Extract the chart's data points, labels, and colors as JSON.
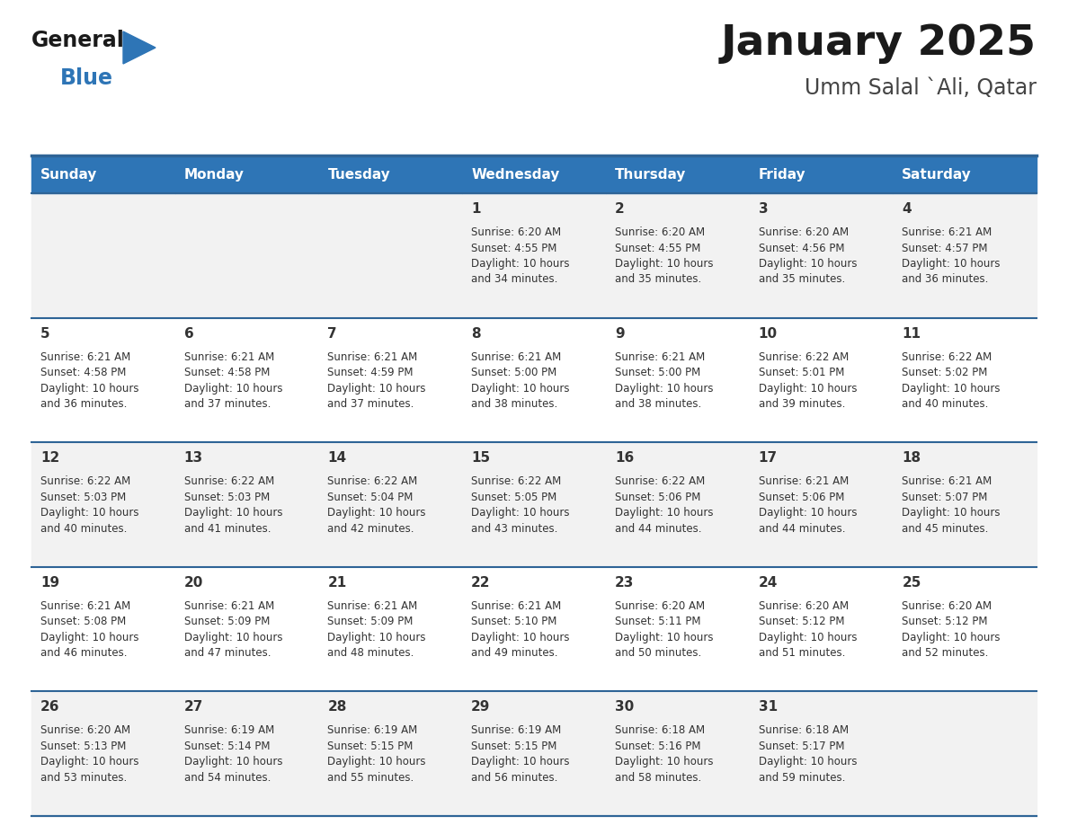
{
  "title": "January 2025",
  "subtitle": "Umm Salal `Ali, Qatar",
  "days_of_week": [
    "Sunday",
    "Monday",
    "Tuesday",
    "Wednesday",
    "Thursday",
    "Friday",
    "Saturday"
  ],
  "header_bg": "#2E75B6",
  "header_text_color": "#FFFFFF",
  "cell_bg_odd": "#F2F2F2",
  "cell_bg_even": "#FFFFFF",
  "row_line_color": "#2E6496",
  "text_color": "#333333",
  "logo_black": "#1a1a1a",
  "logo_blue": "#2E75B6",
  "calendar_data": [
    [
      {
        "day": null,
        "sunrise": null,
        "sunset": null,
        "daylight": null
      },
      {
        "day": null,
        "sunrise": null,
        "sunset": null,
        "daylight": null
      },
      {
        "day": null,
        "sunrise": null,
        "sunset": null,
        "daylight": null
      },
      {
        "day": 1,
        "sunrise": "6:20 AM",
        "sunset": "4:55 PM",
        "daylight": "10 hours\nand 34 minutes."
      },
      {
        "day": 2,
        "sunrise": "6:20 AM",
        "sunset": "4:55 PM",
        "daylight": "10 hours\nand 35 minutes."
      },
      {
        "day": 3,
        "sunrise": "6:20 AM",
        "sunset": "4:56 PM",
        "daylight": "10 hours\nand 35 minutes."
      },
      {
        "day": 4,
        "sunrise": "6:21 AM",
        "sunset": "4:57 PM",
        "daylight": "10 hours\nand 36 minutes."
      }
    ],
    [
      {
        "day": 5,
        "sunrise": "6:21 AM",
        "sunset": "4:58 PM",
        "daylight": "10 hours\nand 36 minutes."
      },
      {
        "day": 6,
        "sunrise": "6:21 AM",
        "sunset": "4:58 PM",
        "daylight": "10 hours\nand 37 minutes."
      },
      {
        "day": 7,
        "sunrise": "6:21 AM",
        "sunset": "4:59 PM",
        "daylight": "10 hours\nand 37 minutes."
      },
      {
        "day": 8,
        "sunrise": "6:21 AM",
        "sunset": "5:00 PM",
        "daylight": "10 hours\nand 38 minutes."
      },
      {
        "day": 9,
        "sunrise": "6:21 AM",
        "sunset": "5:00 PM",
        "daylight": "10 hours\nand 38 minutes."
      },
      {
        "day": 10,
        "sunrise": "6:22 AM",
        "sunset": "5:01 PM",
        "daylight": "10 hours\nand 39 minutes."
      },
      {
        "day": 11,
        "sunrise": "6:22 AM",
        "sunset": "5:02 PM",
        "daylight": "10 hours\nand 40 minutes."
      }
    ],
    [
      {
        "day": 12,
        "sunrise": "6:22 AM",
        "sunset": "5:03 PM",
        "daylight": "10 hours\nand 40 minutes."
      },
      {
        "day": 13,
        "sunrise": "6:22 AM",
        "sunset": "5:03 PM",
        "daylight": "10 hours\nand 41 minutes."
      },
      {
        "day": 14,
        "sunrise": "6:22 AM",
        "sunset": "5:04 PM",
        "daylight": "10 hours\nand 42 minutes."
      },
      {
        "day": 15,
        "sunrise": "6:22 AM",
        "sunset": "5:05 PM",
        "daylight": "10 hours\nand 43 minutes."
      },
      {
        "day": 16,
        "sunrise": "6:22 AM",
        "sunset": "5:06 PM",
        "daylight": "10 hours\nand 44 minutes."
      },
      {
        "day": 17,
        "sunrise": "6:21 AM",
        "sunset": "5:06 PM",
        "daylight": "10 hours\nand 44 minutes."
      },
      {
        "day": 18,
        "sunrise": "6:21 AM",
        "sunset": "5:07 PM",
        "daylight": "10 hours\nand 45 minutes."
      }
    ],
    [
      {
        "day": 19,
        "sunrise": "6:21 AM",
        "sunset": "5:08 PM",
        "daylight": "10 hours\nand 46 minutes."
      },
      {
        "day": 20,
        "sunrise": "6:21 AM",
        "sunset": "5:09 PM",
        "daylight": "10 hours\nand 47 minutes."
      },
      {
        "day": 21,
        "sunrise": "6:21 AM",
        "sunset": "5:09 PM",
        "daylight": "10 hours\nand 48 minutes."
      },
      {
        "day": 22,
        "sunrise": "6:21 AM",
        "sunset": "5:10 PM",
        "daylight": "10 hours\nand 49 minutes."
      },
      {
        "day": 23,
        "sunrise": "6:20 AM",
        "sunset": "5:11 PM",
        "daylight": "10 hours\nand 50 minutes."
      },
      {
        "day": 24,
        "sunrise": "6:20 AM",
        "sunset": "5:12 PM",
        "daylight": "10 hours\nand 51 minutes."
      },
      {
        "day": 25,
        "sunrise": "6:20 AM",
        "sunset": "5:12 PM",
        "daylight": "10 hours\nand 52 minutes."
      }
    ],
    [
      {
        "day": 26,
        "sunrise": "6:20 AM",
        "sunset": "5:13 PM",
        "daylight": "10 hours\nand 53 minutes."
      },
      {
        "day": 27,
        "sunrise": "6:19 AM",
        "sunset": "5:14 PM",
        "daylight": "10 hours\nand 54 minutes."
      },
      {
        "day": 28,
        "sunrise": "6:19 AM",
        "sunset": "5:15 PM",
        "daylight": "10 hours\nand 55 minutes."
      },
      {
        "day": 29,
        "sunrise": "6:19 AM",
        "sunset": "5:15 PM",
        "daylight": "10 hours\nand 56 minutes."
      },
      {
        "day": 30,
        "sunrise": "6:18 AM",
        "sunset": "5:16 PM",
        "daylight": "10 hours\nand 58 minutes."
      },
      {
        "day": 31,
        "sunrise": "6:18 AM",
        "sunset": "5:17 PM",
        "daylight": "10 hours\nand 59 minutes."
      },
      {
        "day": null,
        "sunrise": null,
        "sunset": null,
        "daylight": null
      }
    ]
  ]
}
